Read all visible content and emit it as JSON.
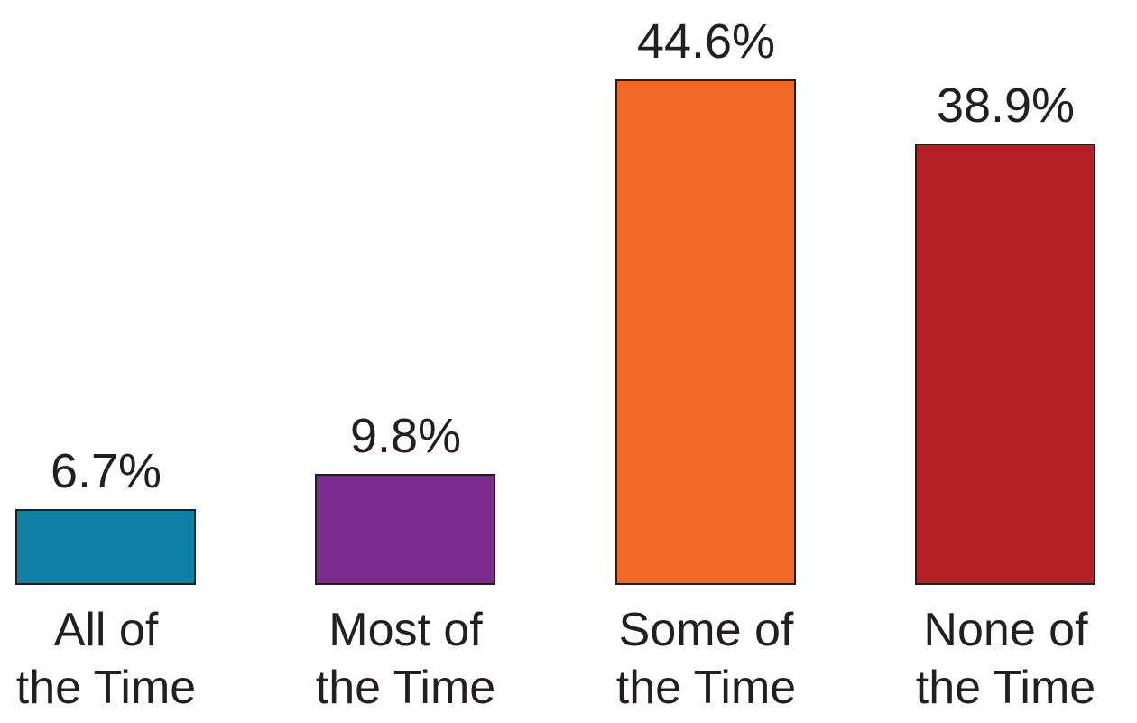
{
  "chart_data": {
    "type": "bar",
    "title": "",
    "xlabel": "",
    "ylabel": "",
    "ylim": [
      0,
      50
    ],
    "grid": false,
    "legend": false,
    "axes_visible": false,
    "background_color": "#FFFFFF",
    "text_color": "#231F20",
    "bar_border_color": "#231F20",
    "categories": [
      "All of the Time",
      "Most of the Time",
      "Some of the Time",
      "None of the Time"
    ],
    "values": [
      6.7,
      9.8,
      44.6,
      38.9
    ],
    "bars": [
      {
        "category_line1": "All of",
        "category_line2": "the Time",
        "value": 6.7,
        "value_label": "6.7%",
        "color": "#0F81A5"
      },
      {
        "category_line1": "Most of",
        "category_line2": "the Time",
        "value": 9.8,
        "value_label": "9.8%",
        "color": "#7B2D8E"
      },
      {
        "category_line1": "Some of",
        "category_line2": "the Time",
        "value": 44.6,
        "value_label": "44.6%",
        "color": "#F26926"
      },
      {
        "category_line1": "None of",
        "category_line2": "the Time",
        "value": 38.9,
        "value_label": "38.9%",
        "color": "#B32025"
      }
    ]
  }
}
